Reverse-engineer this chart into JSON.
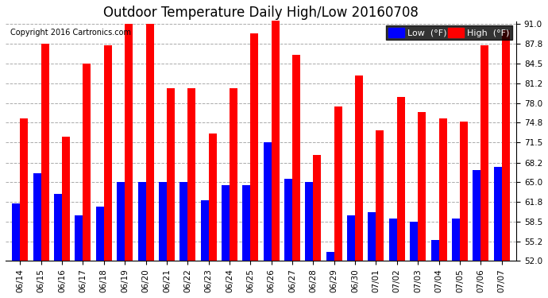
{
  "title": "Outdoor Temperature Daily High/Low 20160708",
  "copyright": "Copyright 2016 Cartronics.com",
  "legend_low": "Low  (°F)",
  "legend_high": "High  (°F)",
  "dates": [
    "06/14",
    "06/15",
    "06/16",
    "06/17",
    "06/18",
    "06/19",
    "06/20",
    "06/21",
    "06/22",
    "06/23",
    "06/24",
    "06/25",
    "06/26",
    "06/27",
    "06/28",
    "06/29",
    "06/30",
    "07/01",
    "07/02",
    "07/03",
    "07/04",
    "07/05",
    "07/06",
    "07/07"
  ],
  "highs": [
    75.5,
    87.8,
    72.5,
    84.5,
    87.5,
    91.0,
    91.0,
    80.5,
    80.5,
    73.0,
    80.5,
    89.5,
    91.5,
    86.0,
    69.5,
    77.5,
    82.5,
    73.5,
    79.0,
    76.5,
    75.5,
    75.0,
    87.5,
    90.0
  ],
  "lows": [
    61.5,
    66.5,
    63.0,
    59.5,
    61.0,
    65.0,
    65.0,
    65.0,
    65.0,
    62.0,
    64.5,
    64.5,
    71.5,
    65.5,
    65.0,
    53.5,
    59.5,
    60.0,
    59.0,
    58.5,
    55.5,
    59.0,
    67.0,
    67.5
  ],
  "ymin": 52.0,
  "ymax": 91.5,
  "yticks": [
    52.0,
    55.2,
    58.5,
    61.8,
    65.0,
    68.2,
    71.5,
    74.8,
    78.0,
    81.2,
    84.5,
    87.8,
    91.0
  ],
  "bar_color_high": "#FF0000",
  "bar_color_low": "#0000FF",
  "background_color": "#FFFFFF",
  "grid_color": "#AAAAAA",
  "title_fontsize": 12,
  "tick_fontsize": 7.5,
  "legend_fontsize": 8,
  "bar_width": 0.38
}
